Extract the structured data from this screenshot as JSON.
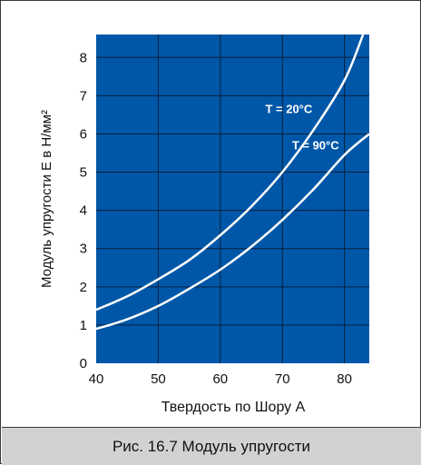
{
  "chart_data": {
    "type": "line",
    "xlabel": "Твердость по Шору А",
    "ylabel": "Модуль упругости E в Н/мм²",
    "xlim": [
      40,
      84
    ],
    "ylim": [
      0,
      8.6
    ],
    "x_ticks": [
      "40",
      "50",
      "60",
      "70",
      "80"
    ],
    "y_ticks": [
      "0",
      "1",
      "2",
      "3",
      "4",
      "5",
      "6",
      "7",
      "8"
    ],
    "grid": true,
    "background_color": "#0057a8",
    "line_color": "#ffffff",
    "series": [
      {
        "name": "T = 20°C",
        "x": [
          40,
          45,
          50,
          55,
          60,
          65,
          70,
          75,
          80,
          83
        ],
        "y": [
          1.4,
          1.75,
          2.2,
          2.7,
          3.35,
          4.1,
          5.0,
          6.1,
          7.4,
          8.6
        ]
      },
      {
        "name": "T = 90°C",
        "x": [
          40,
          45,
          50,
          55,
          60,
          65,
          70,
          75,
          80,
          84
        ],
        "y": [
          0.9,
          1.15,
          1.5,
          1.95,
          2.45,
          3.05,
          3.75,
          4.55,
          5.45,
          6.0
        ]
      }
    ]
  },
  "caption": "Рис. 16.7 Модуль упругости"
}
